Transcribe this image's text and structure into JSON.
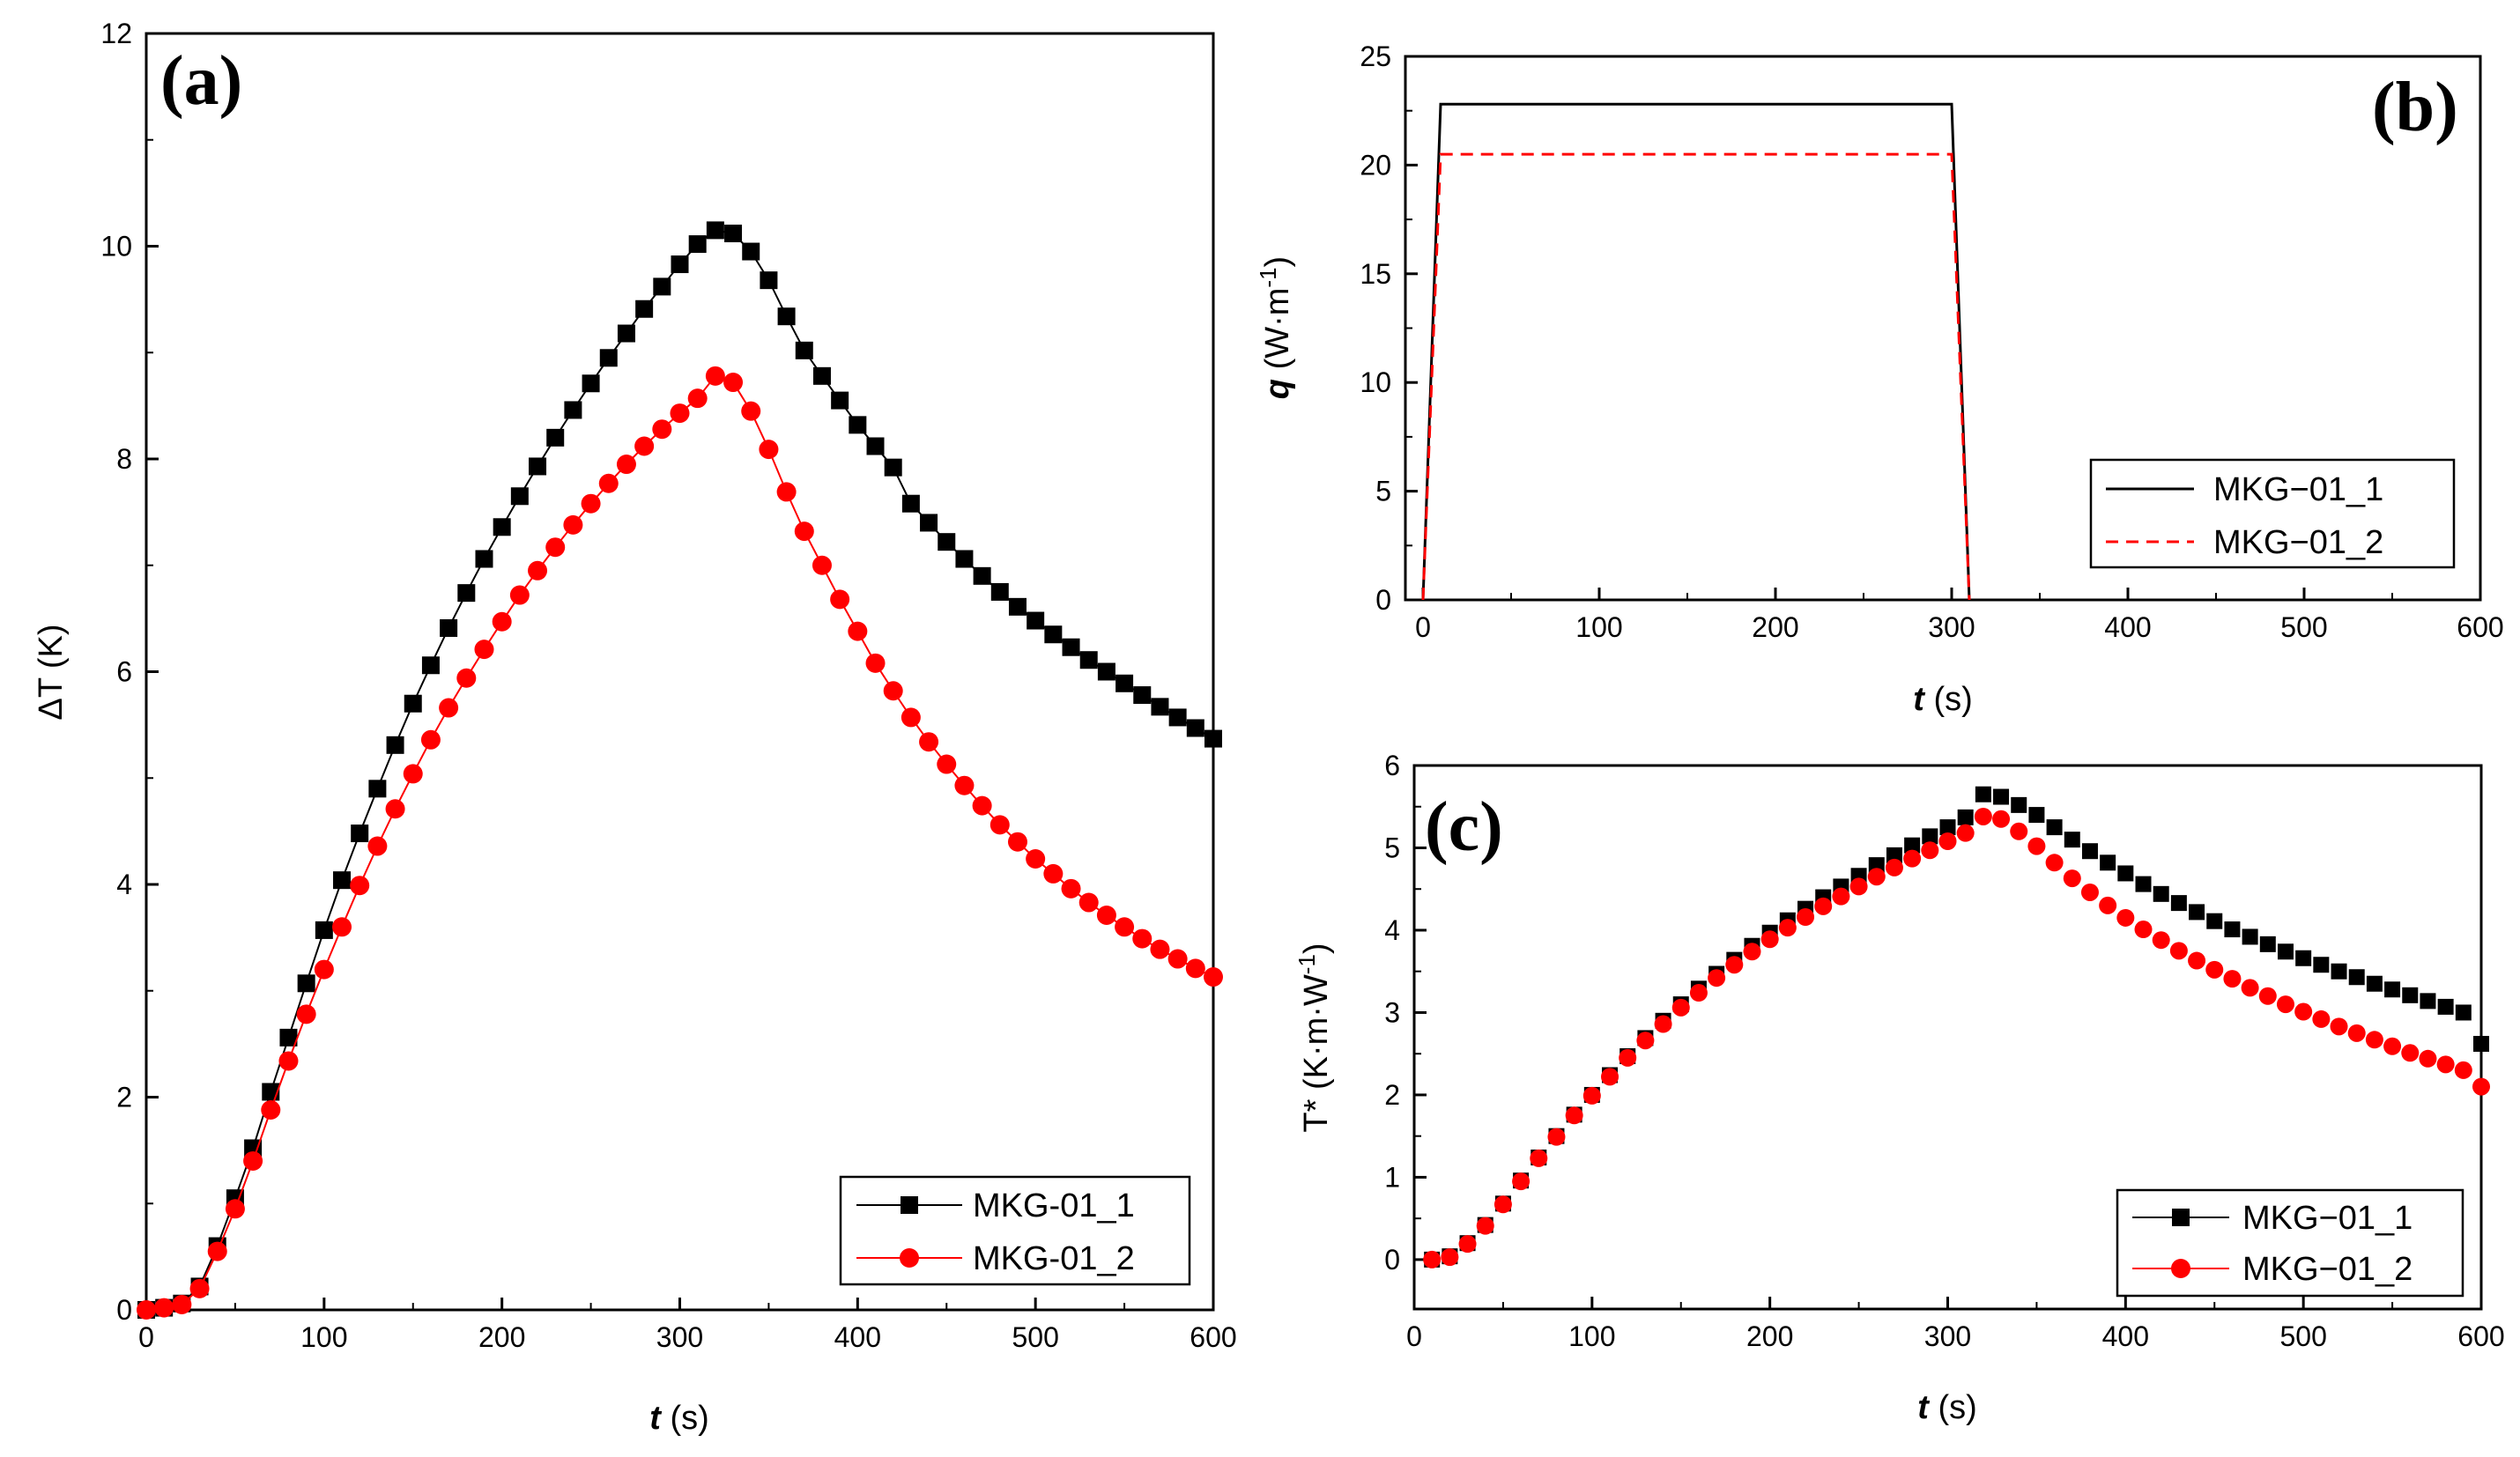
{
  "figure": {
    "panels": [
      {
        "id": "a",
        "tag": "(a)"
      },
      {
        "id": "b",
        "tag": "(b)"
      },
      {
        "id": "c",
        "tag": "(c)"
      }
    ]
  },
  "colors": {
    "series_1": "#000000",
    "series_2": "#ff0000"
  },
  "chart_data": [
    {
      "id": "a",
      "type": "line",
      "title": "(a)",
      "xlabel": "t (s)",
      "xlabel_var": "t",
      "xlabel_unit": "(s)",
      "ylabel": "ΔT (K)",
      "xlim": [
        0,
        600
      ],
      "ylim": [
        0,
        12
      ],
      "xticks": [
        0,
        100,
        200,
        300,
        400,
        500,
        600
      ],
      "yticks": [
        0,
        2,
        4,
        6,
        8,
        10,
        12
      ],
      "legend_position": "bottom-right",
      "grid": false,
      "series": [
        {
          "name": "MKG-01_1",
          "marker": "square",
          "color": "#000000",
          "x": [
            0,
            10,
            20,
            30,
            40,
            50,
            60,
            70,
            80,
            90,
            100,
            110,
            120,
            130,
            140,
            150,
            160,
            170,
            180,
            190,
            200,
            210,
            220,
            230,
            240,
            250,
            260,
            270,
            280,
            290,
            300,
            310,
            320,
            330,
            340,
            350,
            360,
            370,
            380,
            390,
            400,
            410,
            420,
            430,
            440,
            450,
            460,
            470,
            480,
            490,
            500,
            510,
            520,
            530,
            540,
            550,
            560,
            570,
            580,
            590,
            600
          ],
          "y": [
            0,
            0.02,
            0.06,
            0.22,
            0.6,
            1.05,
            1.52,
            2.05,
            2.56,
            3.07,
            3.57,
            4.04,
            4.48,
            4.9,
            5.31,
            5.7,
            6.06,
            6.41,
            6.74,
            7.06,
            7.36,
            7.65,
            7.93,
            8.2,
            8.46,
            8.71,
            8.95,
            9.18,
            9.41,
            9.62,
            9.83,
            10.02,
            10.15,
            10.12,
            9.95,
            9.68,
            9.34,
            9.02,
            8.78,
            8.55,
            8.32,
            8.12,
            7.92,
            7.58,
            7.4,
            7.22,
            7.06,
            6.9,
            6.75,
            6.61,
            6.48,
            6.35,
            6.23,
            6.11,
            6.0,
            5.89,
            5.78,
            5.67,
            5.57,
            5.47,
            5.37
          ]
        },
        {
          "name": "MKG-01_2",
          "marker": "circle",
          "color": "#ff0000",
          "x": [
            0,
            10,
            20,
            30,
            40,
            50,
            60,
            70,
            80,
            90,
            100,
            110,
            120,
            130,
            140,
            150,
            160,
            170,
            180,
            190,
            200,
            210,
            220,
            230,
            240,
            250,
            260,
            270,
            280,
            290,
            300,
            310,
            320,
            330,
            340,
            350,
            360,
            370,
            380,
            390,
            400,
            410,
            420,
            430,
            440,
            450,
            460,
            470,
            480,
            490,
            500,
            510,
            520,
            530,
            540,
            550,
            560,
            570,
            580,
            590,
            600
          ],
          "y": [
            0,
            0.02,
            0.05,
            0.2,
            0.55,
            0.95,
            1.4,
            1.88,
            2.34,
            2.78,
            3.2,
            3.6,
            3.99,
            4.36,
            4.71,
            5.04,
            5.36,
            5.66,
            5.94,
            6.21,
            6.47,
            6.72,
            6.95,
            7.17,
            7.38,
            7.58,
            7.77,
            7.95,
            8.12,
            8.28,
            8.43,
            8.57,
            8.78,
            8.72,
            8.45,
            8.09,
            7.69,
            7.32,
            7.0,
            6.68,
            6.38,
            6.08,
            5.82,
            5.57,
            5.34,
            5.13,
            4.93,
            4.74,
            4.56,
            4.4,
            4.24,
            4.1,
            3.96,
            3.83,
            3.71,
            3.6,
            3.49,
            3.39,
            3.3,
            3.21,
            3.13
          ]
        }
      ]
    },
    {
      "id": "b",
      "type": "line",
      "title": "(b)",
      "xlabel": "t (s)",
      "xlabel_var": "t",
      "xlabel_unit": "(s)",
      "ylabel": "q (W·m⁻¹)",
      "ylabel_var": "q",
      "ylabel_unit": "(W·m",
      "ylabel_sup": "-1",
      "ylabel_close": ")",
      "xlim": [
        -10,
        600
      ],
      "ylim": [
        0,
        25
      ],
      "xticks": [
        0,
        100,
        200,
        300,
        400,
        500,
        600
      ],
      "yticks": [
        0,
        5,
        10,
        15,
        20,
        25
      ],
      "legend_position": "right",
      "grid": false,
      "series": [
        {
          "name": "MKG−01_1",
          "line_style": "solid",
          "color": "#000000",
          "x": [
            0,
            10,
            300,
            310
          ],
          "y": [
            0,
            22.8,
            22.8,
            0
          ]
        },
        {
          "name": "MKG−01_2",
          "line_style": "dashed",
          "color": "#ff0000",
          "x": [
            0,
            10,
            300,
            310
          ],
          "y": [
            0,
            20.5,
            20.5,
            0
          ]
        }
      ]
    },
    {
      "id": "c",
      "type": "scatter",
      "title": "(c)",
      "xlabel": "t (s)",
      "xlabel_var": "t",
      "xlabel_unit": "(s)",
      "ylabel": "T* (K·m·W⁻¹)",
      "ylabel_main": "T* (K·m·W",
      "ylabel_sup": "-1",
      "ylabel_close": ")",
      "xlim": [
        0,
        600
      ],
      "ylim": [
        -0.6,
        6
      ],
      "xticks": [
        0,
        100,
        200,
        300,
        400,
        500,
        600
      ],
      "yticks": [
        0,
        1,
        2,
        3,
        4,
        5,
        6
      ],
      "legend_position": "bottom-right",
      "grid": false,
      "series": [
        {
          "name": "MKG−01_1",
          "marker": "square",
          "color": "#000000",
          "x": [
            10,
            20,
            30,
            40,
            50,
            60,
            70,
            80,
            90,
            100,
            110,
            120,
            130,
            140,
            150,
            160,
            170,
            180,
            190,
            200,
            210,
            220,
            230,
            240,
            250,
            260,
            270,
            280,
            290,
            300,
            310,
            320,
            330,
            340,
            350,
            360,
            370,
            380,
            390,
            400,
            410,
            420,
            430,
            440,
            450,
            460,
            470,
            480,
            490,
            500,
            510,
            520,
            530,
            540,
            550,
            560,
            570,
            580,
            590,
            600
          ],
          "y": [
            0,
            0.04,
            0.2,
            0.42,
            0.68,
            0.96,
            1.24,
            1.5,
            1.76,
            2.0,
            2.24,
            2.47,
            2.69,
            2.9,
            3.1,
            3.29,
            3.47,
            3.64,
            3.81,
            3.97,
            4.12,
            4.26,
            4.4,
            4.53,
            4.66,
            4.79,
            4.91,
            5.03,
            5.14,
            5.25,
            5.37,
            5.65,
            5.62,
            5.52,
            5.4,
            5.25,
            5.1,
            4.96,
            4.82,
            4.69,
            4.56,
            4.44,
            4.33,
            4.22,
            4.11,
            4.01,
            3.92,
            3.83,
            3.74,
            3.66,
            3.58,
            3.5,
            3.43,
            3.35,
            3.28,
            3.21,
            3.14,
            3.07,
            3.0,
            2.62
          ]
        },
        {
          "name": "MKG−01_2",
          "marker": "circle",
          "color": "#ff0000",
          "x": [
            10,
            20,
            30,
            40,
            50,
            60,
            70,
            80,
            90,
            100,
            110,
            120,
            130,
            140,
            150,
            160,
            170,
            180,
            190,
            200,
            210,
            220,
            230,
            240,
            250,
            260,
            270,
            280,
            290,
            300,
            310,
            320,
            330,
            340,
            350,
            360,
            370,
            380,
            390,
            400,
            410,
            420,
            430,
            440,
            450,
            460,
            470,
            480,
            490,
            500,
            510,
            520,
            530,
            540,
            550,
            560,
            570,
            580,
            590,
            600
          ],
          "y": [
            0,
            0.03,
            0.19,
            0.41,
            0.67,
            0.95,
            1.23,
            1.49,
            1.75,
            1.99,
            2.22,
            2.45,
            2.66,
            2.86,
            3.06,
            3.24,
            3.42,
            3.58,
            3.74,
            3.89,
            4.03,
            4.16,
            4.29,
            4.41,
            4.53,
            4.65,
            4.76,
            4.87,
            4.97,
            5.08,
            5.18,
            5.38,
            5.35,
            5.2,
            5.02,
            4.82,
            4.63,
            4.46,
            4.3,
            4.15,
            4.01,
            3.88,
            3.75,
            3.63,
            3.52,
            3.41,
            3.3,
            3.2,
            3.1,
            3.01,
            2.92,
            2.83,
            2.75,
            2.67,
            2.59,
            2.51,
            2.44,
            2.37,
            2.3,
            2.1
          ]
        }
      ]
    }
  ]
}
